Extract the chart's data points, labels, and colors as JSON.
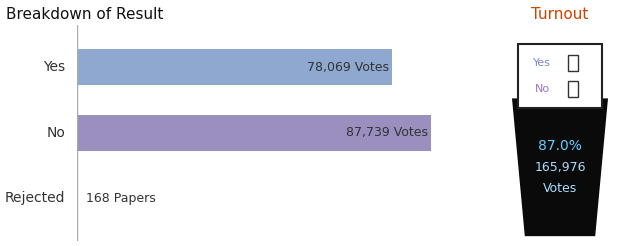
{
  "title_left": "Breakdown of Result",
  "title_right": "Turnout",
  "categories": [
    "Yes",
    "No",
    "Rejected"
  ],
  "values": [
    78069,
    87739,
    168
  ],
  "max_value": 95000,
  "bar_colors": [
    "#8fa8d0",
    "#9b8fc0",
    "#cc2222"
  ],
  "bar_labels": [
    "78,069 Votes",
    "87,739 Votes",
    "168 Papers"
  ],
  "bar_label_colors": [
    "#333333",
    "#333333",
    "#333333"
  ],
  "rejected_label_color": "#333333",
  "title_left_color": "#111111",
  "title_right_color": "#cc4400",
  "turnout_pct": "87.0%",
  "turnout_votes": "165,976",
  "turnout_label": "Votes",
  "ballot_box_color": "#0a0a0a",
  "turnout_pct_color": "#66ccff",
  "turnout_votes_color": "#aaddff",
  "turnout_label_color": "#aaddff",
  "yes_text_color": "#7788cc",
  "no_text_color": "#9977bb",
  "axis_line_color": "#aaaaaa"
}
